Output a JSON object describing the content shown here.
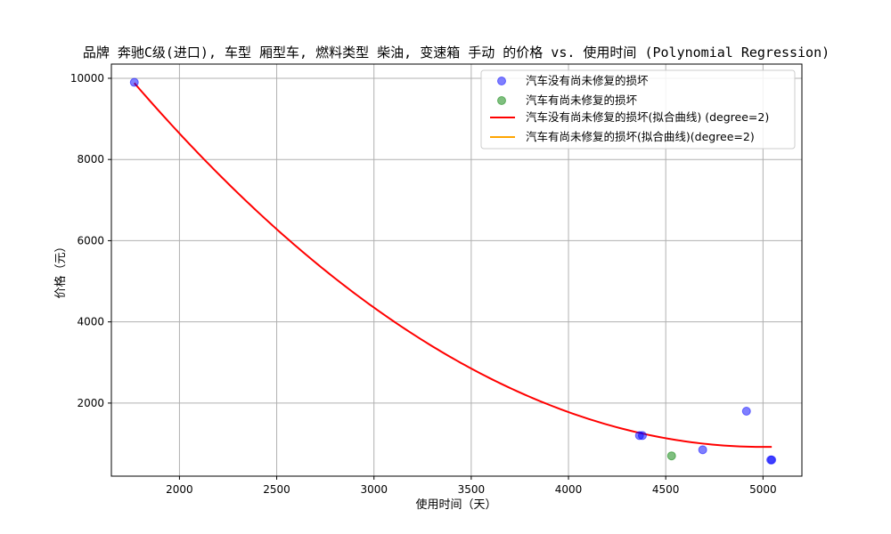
{
  "chart_data": {
    "type": "scatter",
    "title": "品牌 奔驰C级(进口), 车型 厢型车, 燃料类型 柴油, 变速箱 手动 的价格 vs. 使用时间 (Polynomial Regression)",
    "xlabel": "使用时间（天）",
    "ylabel": "价格（元）",
    "xlim": [
      1650,
      5200
    ],
    "ylim": [
      200,
      10350
    ],
    "x_ticks": [
      2000,
      2500,
      3000,
      3500,
      4000,
      4500,
      5000
    ],
    "y_ticks": [
      2000,
      4000,
      6000,
      8000,
      10000
    ],
    "grid": true,
    "legend_position": "top-right",
    "series": [
      {
        "name": "汽车没有尚未修复的损坏",
        "kind": "scatter",
        "color": "#0000ff",
        "points": [
          [
            1768,
            9900
          ],
          [
            4365,
            1200
          ],
          [
            4380,
            1200
          ],
          [
            4690,
            850
          ],
          [
            4915,
            1800
          ],
          [
            5040,
            600
          ],
          [
            5045,
            600
          ]
        ]
      },
      {
        "name": "汽车有尚未修复的损坏",
        "kind": "scatter",
        "color": "#008000",
        "points": [
          [
            4530,
            700
          ]
        ]
      },
      {
        "name": "汽车没有尚未修复的损坏(拟合曲线) (degree=2)",
        "kind": "line",
        "color": "#ff0000",
        "fit": {
          "x_start": 1768,
          "x_end": 5045,
          "vertex_x": 5000,
          "vertex_y": 920,
          "a": 0.000858
        }
      },
      {
        "name": "汽车有尚未修复的损坏(拟合曲线)(degree=2)",
        "kind": "line",
        "color": "#ffa500"
      }
    ]
  }
}
